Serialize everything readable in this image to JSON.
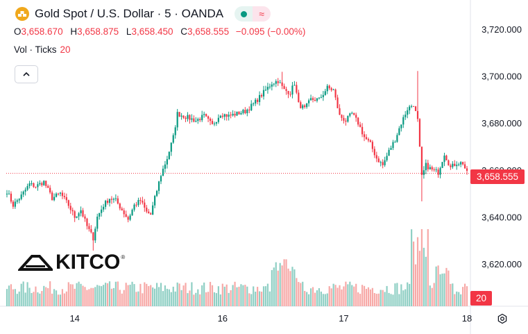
{
  "header": {
    "title": "Gold Spot / U.S. Dollar · 5 · OANDA",
    "symbol_icon": "gold-bars-icon",
    "badges": [
      {
        "icon": "market-open-dot-icon",
        "color": "#089981"
      },
      {
        "icon": "wave-icon",
        "color": "#f23645"
      }
    ]
  },
  "ohlc": {
    "open_label": "O",
    "open": "3,658.670",
    "high_label": "H",
    "high": "3,658.875",
    "low_label": "L",
    "low": "3,658.450",
    "close_label": "C",
    "close": "3,658.555",
    "change": "−0.095 (−0.00%)"
  },
  "volume": {
    "label": "Vol · Ticks",
    "value": "20"
  },
  "brand": {
    "name": "KITCO",
    "mark": "®"
  },
  "labels": {
    "last_price": "3,658.555",
    "last_volume": "20"
  },
  "colors": {
    "up": "#089981",
    "down": "#f23645",
    "vol_up": "#8fcfc4",
    "vol_down": "#f7a9a7"
  },
  "chart_data": {
    "type": "candlestick",
    "symbol": "Gold Spot / U.S. Dollar",
    "interval": "5",
    "source": "OANDA",
    "x_ticks": [
      "14",
      "16",
      "17",
      "18"
    ],
    "y_ticks": [
      "3,720.000",
      "3,700.000",
      "3,680.000",
      "3,660.000",
      "3,640.000",
      "3,620.000"
    ],
    "y_tick_values": [
      3720,
      3700,
      3680,
      3660,
      3640,
      3620
    ],
    "ylim": [
      3602,
      3730
    ],
    "last_price": 3658.555,
    "grid": false,
    "price_path": [
      [
        0,
        3651
      ],
      [
        3,
        3645
      ],
      [
        7,
        3649
      ],
      [
        11,
        3654
      ],
      [
        14,
        3653
      ],
      [
        18,
        3655
      ],
      [
        22,
        3648
      ],
      [
        26,
        3650
      ],
      [
        30,
        3645
      ],
      [
        33,
        3640
      ],
      [
        36,
        3643
      ],
      [
        39,
        3636
      ],
      [
        42,
        3631
      ],
      [
        44,
        3640
      ],
      [
        47,
        3645
      ],
      [
        50,
        3648
      ],
      [
        53,
        3647
      ],
      [
        56,
        3643
      ],
      [
        59,
        3639
      ],
      [
        62,
        3645
      ],
      [
        65,
        3647
      ],
      [
        68,
        3642
      ],
      [
        70,
        3641
      ],
      [
        72,
        3648
      ],
      [
        75,
        3658
      ],
      [
        78,
        3665
      ],
      [
        81,
        3674
      ],
      [
        83,
        3684
      ],
      [
        86,
        3683
      ],
      [
        89,
        3682
      ],
      [
        92,
        3681
      ],
      [
        96,
        3683
      ],
      [
        100,
        3679
      ],
      [
        104,
        3684
      ],
      [
        108,
        3683
      ],
      [
        112,
        3684
      ],
      [
        116,
        3685
      ],
      [
        120,
        3688
      ],
      [
        123,
        3691
      ],
      [
        126,
        3694
      ],
      [
        129,
        3697
      ],
      [
        132,
        3698
      ],
      [
        135,
        3694
      ],
      [
        138,
        3693
      ],
      [
        140,
        3697
      ],
      [
        142,
        3688
      ],
      [
        145,
        3686
      ],
      [
        148,
        3690
      ],
      [
        152,
        3690
      ],
      [
        156,
        3695
      ],
      [
        159,
        3694
      ],
      [
        162,
        3683
      ],
      [
        165,
        3681
      ],
      [
        168,
        3684
      ],
      [
        171,
        3680
      ],
      [
        174,
        3674
      ],
      [
        177,
        3671
      ],
      [
        180,
        3665
      ],
      [
        183,
        3662
      ],
      [
        186,
        3668
      ],
      [
        189,
        3673
      ],
      [
        192,
        3680
      ],
      [
        195,
        3686
      ],
      [
        198,
        3688
      ],
      [
        200,
        3681
      ],
      [
        202,
        3657
      ],
      [
        204,
        3662
      ],
      [
        207,
        3660
      ],
      [
        210,
        3659
      ],
      [
        213,
        3667
      ],
      [
        216,
        3661
      ],
      [
        219,
        3663
      ],
      [
        222,
        3663
      ],
      [
        224,
        3658.555
      ]
    ],
    "volume_ylim": [
      0,
      400
    ]
  }
}
